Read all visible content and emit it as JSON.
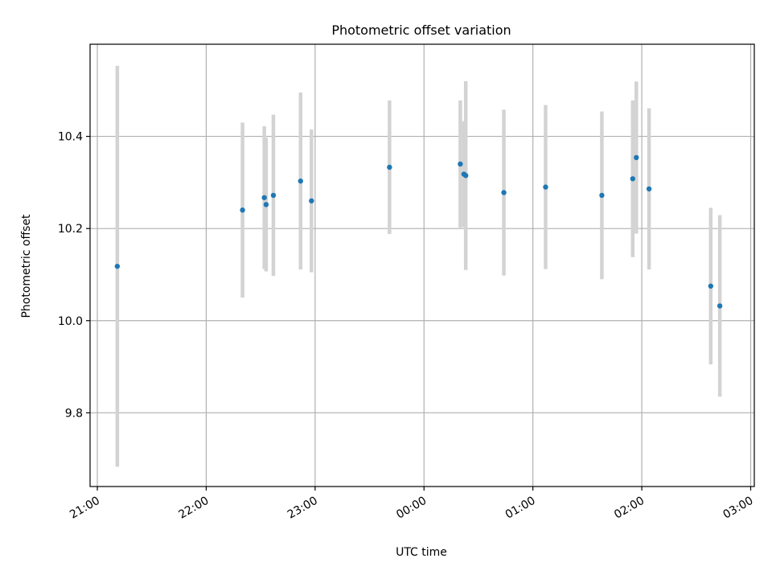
{
  "chart_data": {
    "type": "scatter",
    "title": "Photometric offset variation",
    "xlabel": "UTC time",
    "ylabel": "Photometric offset",
    "xlim": [
      "21:00",
      "03:00"
    ],
    "ylim": [
      9.64,
      10.6
    ],
    "grid": true,
    "legend": "none",
    "colors": {
      "marker": "#1f77b4",
      "errorbar": "#d3d3d3",
      "grid": "#b0b0b0",
      "axes": "#000000"
    },
    "x_ticks": [
      "21:00",
      "22:00",
      "23:00",
      "00:00",
      "01:00",
      "02:00",
      "03:00"
    ],
    "y_ticks": [
      "9.8",
      "10.0",
      "10.2",
      "10.4"
    ],
    "points": [
      {
        "t": "21:11",
        "y": 10.118,
        "err": 0.435
      },
      {
        "t": "22:20",
        "y": 10.24,
        "err": 0.19
      },
      {
        "t": "22:32",
        "y": 10.267,
        "err": 0.155
      },
      {
        "t": "22:33",
        "y": 10.252,
        "err": 0.145
      },
      {
        "t": "22:37",
        "y": 10.272,
        "err": 0.175
      },
      {
        "t": "22:52",
        "y": 10.303,
        "err": 0.192
      },
      {
        "t": "22:58",
        "y": 10.26,
        "err": 0.155
      },
      {
        "t": "23:41",
        "y": 10.333,
        "err": 0.145
      },
      {
        "t": "00:20",
        "y": 10.34,
        "err": 0.138
      },
      {
        "t": "00:22",
        "y": 10.318,
        "err": 0.115
      },
      {
        "t": "00:23",
        "y": 10.315,
        "err": 0.205
      },
      {
        "t": "00:44",
        "y": 10.278,
        "err": 0.18
      },
      {
        "t": "01:07",
        "y": 10.29,
        "err": 0.178
      },
      {
        "t": "01:38",
        "y": 10.272,
        "err": 0.182
      },
      {
        "t": "01:55",
        "y": 10.308,
        "err": 0.17
      },
      {
        "t": "01:57",
        "y": 10.354,
        "err": 0.165
      },
      {
        "t": "02:04",
        "y": 10.286,
        "err": 0.175
      },
      {
        "t": "02:38",
        "y": 10.075,
        "err": 0.17
      },
      {
        "t": "02:43",
        "y": 10.032,
        "err": 0.197
      }
    ]
  }
}
